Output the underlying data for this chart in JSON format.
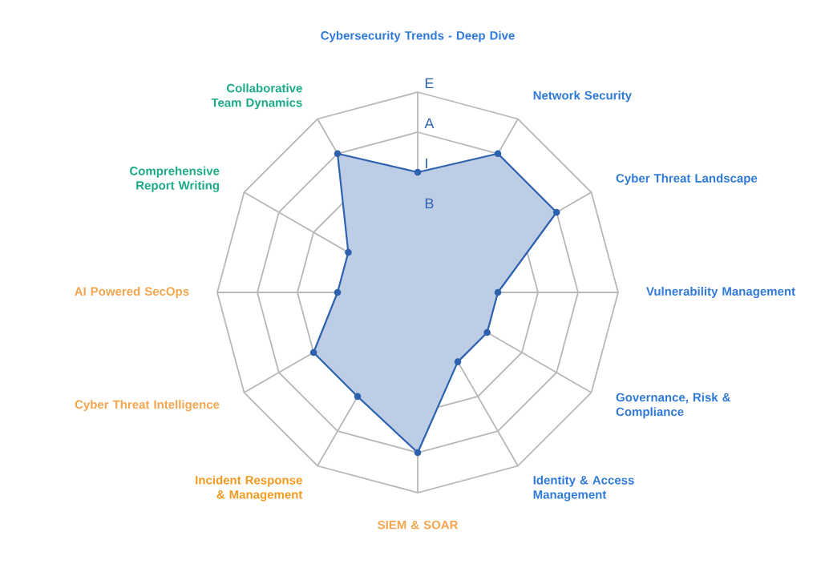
{
  "chart_data": {
    "type": "radar",
    "categories": [
      "Cybersecurity Trends - Deep Dive",
      "Network Security",
      "Cyber Threat Landscape",
      "Vulnerability Management",
      "Governance, Risk & Compliance",
      "Identity & Access Management",
      "SIEM & SOAR",
      "Incident Response & Management",
      "Cyber Threat Intelligence",
      "AI Powered SecOps",
      "Comprehensive Report Writing",
      "Collaborative Team Dynamics"
    ],
    "series": [
      {
        "color": "#2e62ae",
        "values": [
          3,
          4,
          4,
          2,
          2,
          2,
          4,
          3,
          3,
          2,
          2,
          4
        ]
      }
    ],
    "ylim": [
      0,
      5
    ],
    "yticks": [
      {
        "value": 2,
        "label": "B"
      },
      {
        "value": 3,
        "label": "I"
      },
      {
        "value": 4,
        "label": "A"
      },
      {
        "value": 5,
        "label": "E"
      }
    ],
    "grid": true,
    "marker": "circle"
  }
}
